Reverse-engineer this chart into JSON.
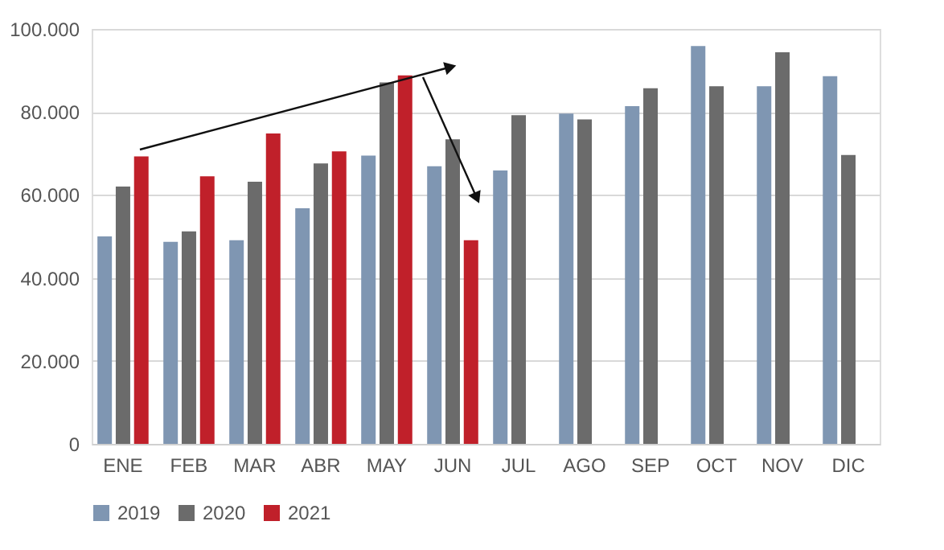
{
  "chart_data": {
    "type": "bar",
    "categories": [
      "ENE",
      "FEB",
      "MAR",
      "ABR",
      "MAY",
      "JUN",
      "JUL",
      "AGO",
      "SEP",
      "OCT",
      "NOV",
      "DIC"
    ],
    "series": [
      {
        "name": "2019",
        "color": "#7f96b2",
        "values": [
          50000,
          48700,
          49100,
          56800,
          69500,
          66900,
          65900,
          79600,
          81400,
          95900,
          86200,
          88600
        ]
      },
      {
        "name": "2020",
        "color": "#6b6b6b",
        "values": [
          62000,
          51200,
          63200,
          67600,
          87100,
          73400,
          79200,
          78200,
          85700,
          86200,
          94400,
          69600
        ]
      },
      {
        "name": "2021",
        "color": "#c0202a",
        "values": [
          69300,
          64500,
          74800,
          70500,
          88800,
          49100,
          null,
          null,
          null,
          null,
          null,
          null
        ]
      }
    ],
    "ylim": [
      0,
      100000
    ],
    "yticks": [
      {
        "value": 0,
        "label": "0"
      },
      {
        "value": 20000,
        "label": "20.000"
      },
      {
        "value": 40000,
        "label": "40.000"
      },
      {
        "value": 60000,
        "label": "60.000"
      },
      {
        "value": 80000,
        "label": "80.000"
      },
      {
        "value": 100000,
        "label": "100.000"
      }
    ],
    "grid": "y",
    "legend": "bottom"
  }
}
